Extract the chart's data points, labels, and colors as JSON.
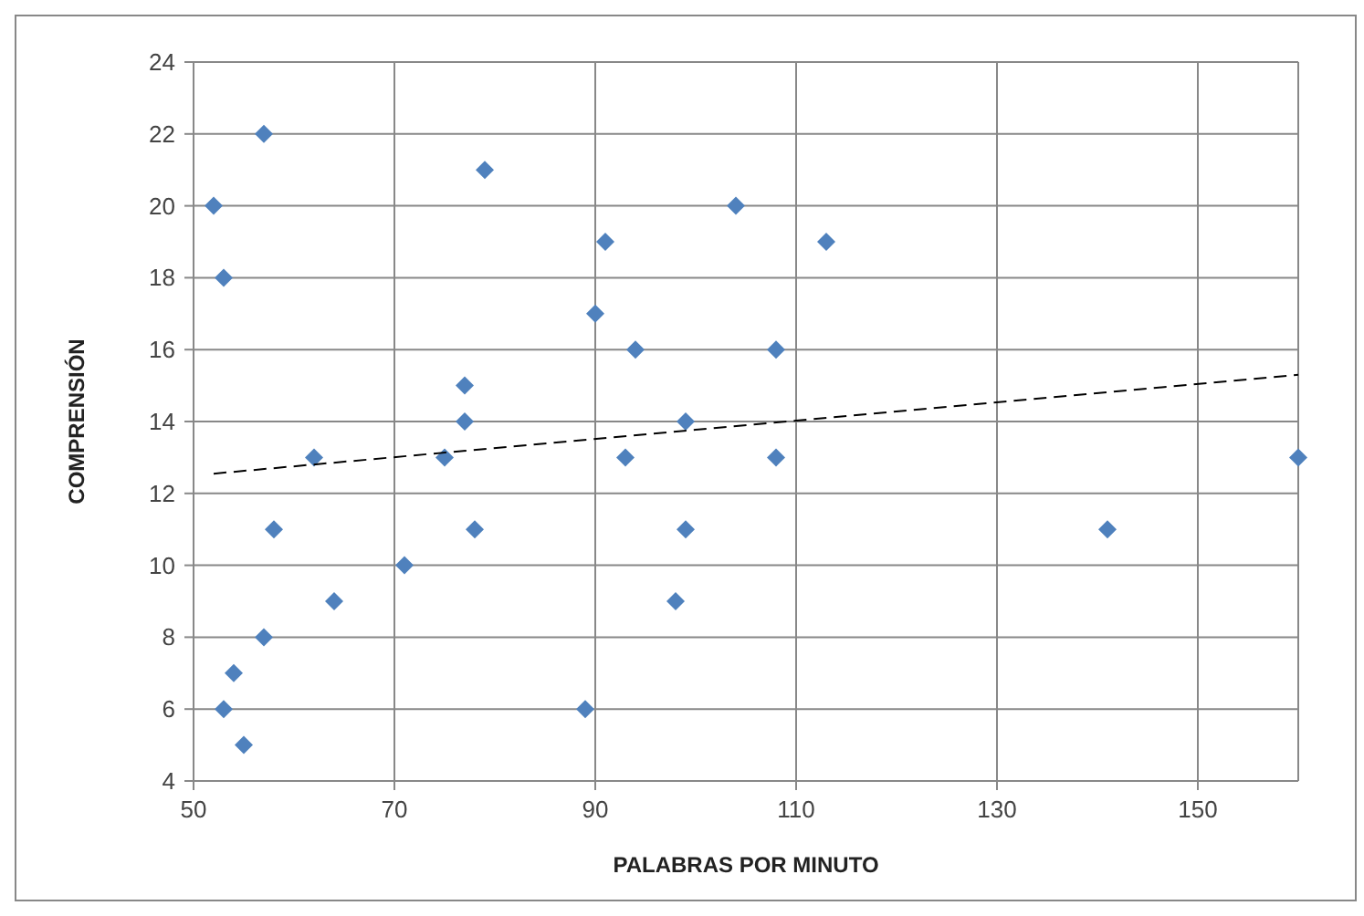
{
  "chart_data": {
    "type": "scatter",
    "xlabel": "PALABRAS POR MINUTO",
    "ylabel": "COMPRENSIÓN",
    "xlim": [
      50,
      160
    ],
    "xticks": [
      50,
      70,
      90,
      110,
      130,
      150
    ],
    "ylim": [
      4,
      24
    ],
    "yticks": [
      4,
      6,
      8,
      10,
      12,
      14,
      16,
      18,
      20,
      22,
      24
    ],
    "grid": true,
    "marker": "diamond",
    "series": [
      {
        "color": "#4f81bd",
        "x": [
          52,
          57,
          53,
          79,
          104,
          91,
          113,
          90,
          94,
          108,
          77,
          77,
          99,
          62,
          75,
          93,
          108,
          160,
          58,
          78,
          99,
          141,
          71,
          64,
          98,
          57,
          54,
          53,
          89,
          55
        ],
        "values": [
          20,
          22,
          18,
          21,
          20,
          19,
          19,
          17,
          16,
          16,
          15,
          14,
          14,
          13,
          13,
          13,
          13,
          13,
          11,
          11,
          11,
          11,
          10,
          9,
          9,
          8,
          7,
          6,
          6,
          5
        ]
      },
      {
        "type": "line",
        "color": "#000000",
        "line_style": "dashed",
        "marker": "none",
        "x": [
          52,
          160
        ],
        "values": [
          12.55,
          15.3
        ]
      }
    ]
  }
}
